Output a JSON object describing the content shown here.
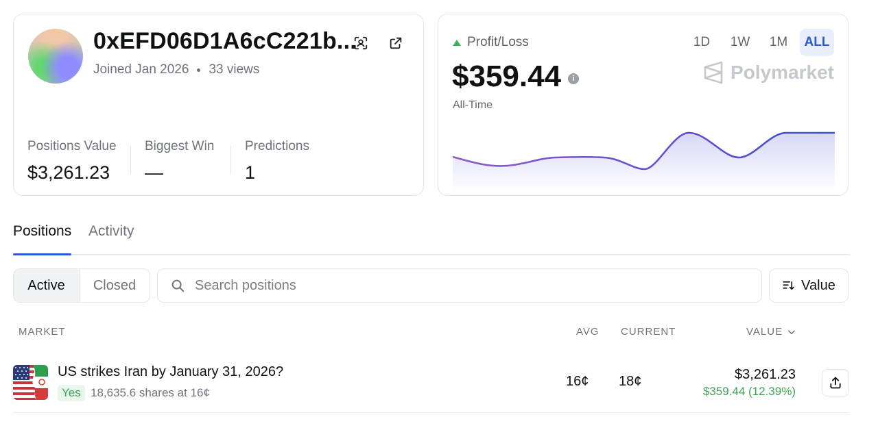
{
  "profile": {
    "address": "0xEFD06D1A6cC221b...",
    "joined": "Joined Jan 2026",
    "views": "33 views",
    "stats": [
      {
        "label": "Positions Value",
        "value": "$3,261.23"
      },
      {
        "label": "Biggest Win",
        "value": "—"
      },
      {
        "label": "Predictions",
        "value": "1"
      }
    ]
  },
  "pnl": {
    "label": "Profit/Loss",
    "amount": "$359.44",
    "period": "All-Time",
    "brand": "Polymarket",
    "ranges": [
      "1D",
      "1W",
      "1M",
      "ALL"
    ],
    "active_range": "ALL",
    "line_color": "#4a4fc9",
    "up_color": "#3fb35a"
  },
  "tabs": [
    "Positions",
    "Activity"
  ],
  "filters": {
    "active_label": "Active",
    "closed_label": "Closed",
    "search_placeholder": "Search positions",
    "sort_label": "Value"
  },
  "table": {
    "headers": {
      "market": "MARKET",
      "avg": "AVG",
      "current": "CURRENT",
      "value": "VALUE"
    },
    "rows": [
      {
        "title": "US strikes Iran by January 31, 2026?",
        "outcome": "Yes",
        "shares": "18,635.6 shares at 16¢",
        "avg": "16¢",
        "current": "18¢",
        "value": "$3,261.23",
        "pnl": "$359.44 (12.39%)"
      }
    ]
  }
}
